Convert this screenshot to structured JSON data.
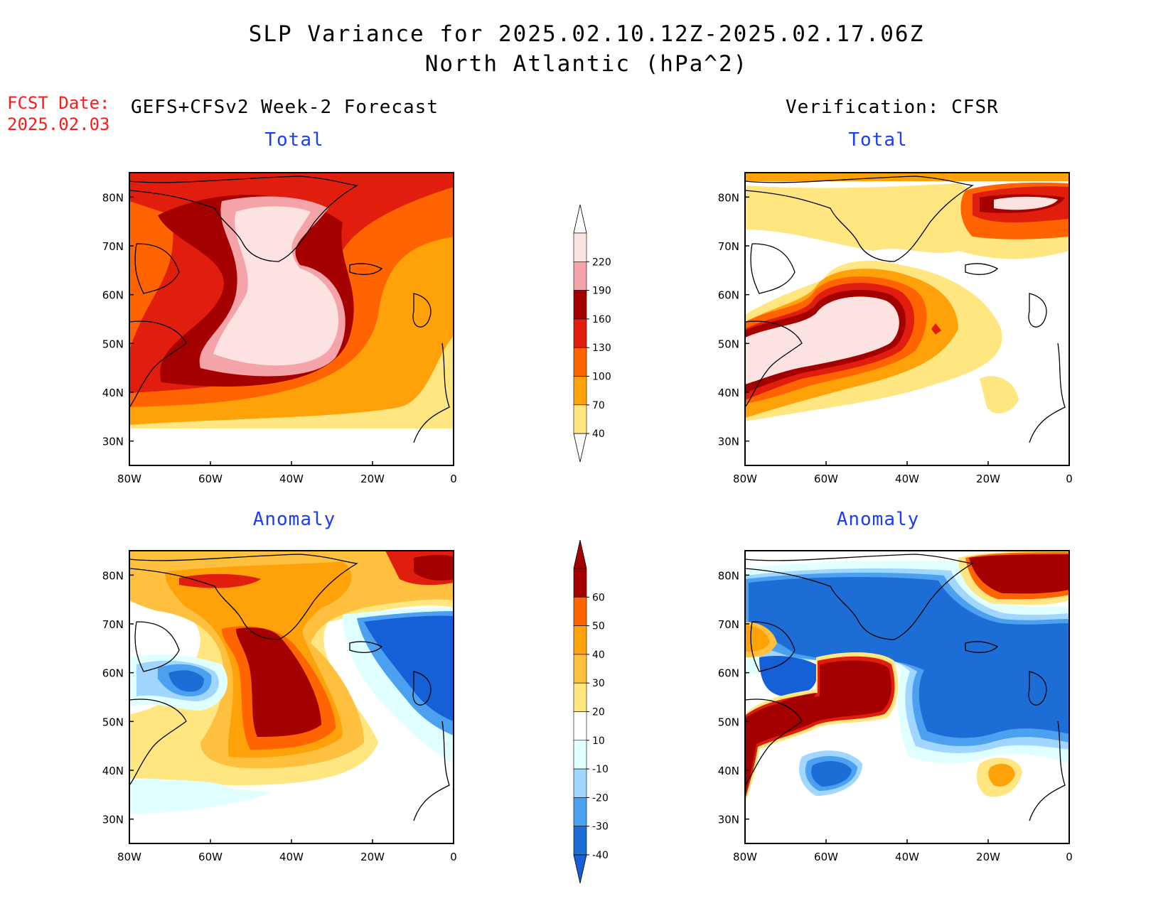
{
  "title": {
    "line1": "SLP Variance for 2025.02.10.12Z-2025.02.17.06Z",
    "line2": "North Atlantic (hPa^2)"
  },
  "fcst_date": {
    "label": "FCST Date:",
    "value": "2025.02.03"
  },
  "headers": {
    "forecast": "GEFS+CFSv2 Week-2 Forecast",
    "verification": "Verification: CFSR"
  },
  "panels": [
    {
      "id": "fcst-total",
      "subtitle": "Total",
      "kind": "total"
    },
    {
      "id": "verif-total",
      "subtitle": "Total",
      "kind": "total"
    },
    {
      "id": "fcst-anom",
      "subtitle": "Anomaly",
      "kind": "anom"
    },
    {
      "id": "verif-anom",
      "subtitle": "Anomaly",
      "kind": "anom"
    }
  ],
  "axes": {
    "x_ticks": [
      "80W",
      "60W",
      "40W",
      "20W",
      "0"
    ],
    "y_ticks": [
      "80N",
      "70N",
      "60N",
      "50N",
      "40N",
      "30N"
    ],
    "lon_range": [
      -80,
      0
    ],
    "lat_range": [
      25,
      85
    ]
  },
  "colorbars": {
    "total": {
      "levels": [
        "220",
        "190",
        "160",
        "130",
        "100",
        "70",
        "40"
      ],
      "colors": [
        "#fde2e2",
        "#f4a3a8",
        "#a50000",
        "#e11e0e",
        "#ff6400",
        "#ffa20a",
        "#ffe680"
      ]
    },
    "anom": {
      "levels": [
        "60",
        "50",
        "40",
        "30",
        "20",
        "10",
        "-10",
        "-20",
        "-30",
        "-40"
      ],
      "colors": [
        "#a50000",
        "#ff6400",
        "#ffa20a",
        "#ffc040",
        "#ffe680",
        "#ffffff",
        "#e0ffff",
        "#a0d6ff",
        "#4ba0f0",
        "#1c6ed6",
        "#1560d6"
      ]
    }
  },
  "coastline_color": "#000000"
}
